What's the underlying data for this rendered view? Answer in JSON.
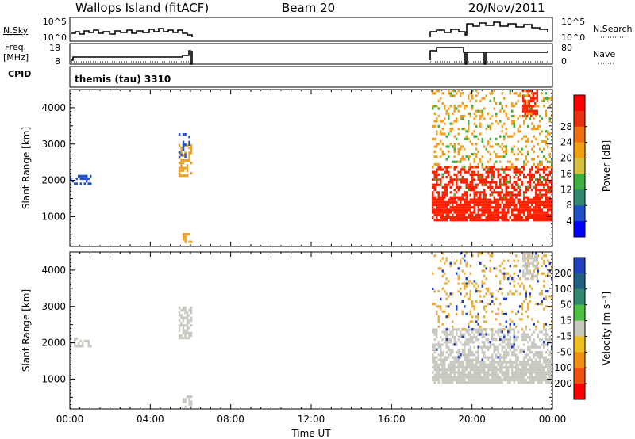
{
  "header": {
    "station": "Wallops Island (fitACF)",
    "beam": "Beam 20",
    "date": "20/Nov/2011"
  },
  "param_panels": {
    "nsky_label": "N.Sky",
    "nsky_ticks": [
      "10^5",
      "10^0"
    ],
    "nsearch_label": "N.Search",
    "nsearch_ticks": [
      "10^5",
      "10^0"
    ],
    "freq_label_1": "Freq.",
    "freq_label_2": "[MHz]",
    "freq_ticks": [
      "18",
      "8"
    ],
    "nave_label": "Nave",
    "nave_ticks": [
      "80",
      "0"
    ],
    "cpid_label": "CPID",
    "cpid_text": "themis (tau) 3310"
  },
  "chart_data": [
    {
      "type": "heatmap",
      "name": "power",
      "ylabel": "Slant Range [km]",
      "xlabel": "Time UT",
      "ylim": [
        180,
        4500
      ],
      "xlim": [
        0,
        24
      ],
      "yticks": [
        "1000",
        "2000",
        "3000",
        "4000"
      ],
      "xticks": [
        "00:00",
        "04:00",
        "08:00",
        "12:00",
        "16:00",
        "20:00",
        "00:00"
      ],
      "colorbar": {
        "label": "Power [dB]",
        "ticks": [
          "4",
          "8",
          "12",
          "16",
          "20",
          "24",
          "28"
        ],
        "colors": [
          "#0000ff",
          "#2050c8",
          "#2f8a70",
          "#3cb040",
          "#d8c040",
          "#f0a010",
          "#f07010",
          "#e83010",
          "#ff0000"
        ]
      },
      "regions": [
        {
          "t": [
            0.0,
            1.0
          ],
          "r": [
            1900,
            2150
          ],
          "color": "#2050c8",
          "density": 0.5
        },
        {
          "t": [
            5.4,
            6.0
          ],
          "r": [
            2100,
            3000
          ],
          "color": "#e8a020",
          "density": 0.55
        },
        {
          "t": [
            5.4,
            6.0
          ],
          "r": [
            2600,
            3300
          ],
          "color": "#2050c8",
          "density": 0.25
        },
        {
          "t": [
            5.6,
            6.0
          ],
          "r": [
            250,
            550
          ],
          "color": "#e8a020",
          "density": 0.5
        },
        {
          "t": [
            18.0,
            24.0
          ],
          "r": [
            900,
            1500
          ],
          "color": "#ff2000",
          "density": 0.85
        },
        {
          "t": [
            18.0,
            24.0
          ],
          "r": [
            1500,
            2400
          ],
          "color": "#ff2000",
          "density": 0.55
        },
        {
          "t": [
            18.0,
            24.0
          ],
          "r": [
            2400,
            4500
          ],
          "color": "#f0a020",
          "density": 0.2
        },
        {
          "t": [
            22.5,
            23.2
          ],
          "r": [
            3800,
            4500
          ],
          "color": "#ff2000",
          "density": 0.6
        },
        {
          "t": [
            18.0,
            24.0
          ],
          "r": [
            1500,
            4500
          ],
          "color": "#3cb040",
          "density": 0.04
        }
      ]
    },
    {
      "type": "heatmap",
      "name": "velocity",
      "ylabel": "Slant Range [km]",
      "xlabel": "Time UT",
      "ylim": [
        180,
        4500
      ],
      "xlim": [
        0,
        24
      ],
      "yticks": [
        "1000",
        "2000",
        "3000",
        "4000"
      ],
      "xticks": [
        "00:00",
        "04:00",
        "08:00",
        "12:00",
        "16:00",
        "20:00",
        "00:00"
      ],
      "colorbar": {
        "label": "Velocity [m s⁻¹]",
        "ticks": [
          "200",
          "100",
          "50",
          "15",
          "-15",
          "-50",
          "-100",
          "-200"
        ],
        "colors": [
          "#2040c0",
          "#206080",
          "#2f8a70",
          "#4cc040",
          "#c8c8c0",
          "#f0c020",
          "#f09010",
          "#f05010",
          "#ff0000"
        ]
      },
      "regions": [
        {
          "t": [
            0.0,
            1.0
          ],
          "r": [
            1900,
            2150
          ],
          "color": "#c8c8c0",
          "density": 0.5
        },
        {
          "t": [
            5.4,
            6.0
          ],
          "r": [
            2100,
            3000
          ],
          "color": "#c8c8c0",
          "density": 0.55
        },
        {
          "t": [
            5.6,
            6.0
          ],
          "r": [
            250,
            550
          ],
          "color": "#c8c8c0",
          "density": 0.5
        },
        {
          "t": [
            18.0,
            24.0
          ],
          "r": [
            900,
            1500
          ],
          "color": "#c8c8c0",
          "density": 0.85
        },
        {
          "t": [
            18.0,
            24.0
          ],
          "r": [
            1500,
            2400
          ],
          "color": "#c8c8c0",
          "density": 0.55
        },
        {
          "t": [
            18.0,
            24.0
          ],
          "r": [
            2400,
            4500
          ],
          "color": "#e8b040",
          "density": 0.15
        },
        {
          "t": [
            22.5,
            23.2
          ],
          "r": [
            3800,
            4500
          ],
          "color": "#c8c8c0",
          "density": 0.6
        },
        {
          "t": [
            18.0,
            24.0
          ],
          "r": [
            1500,
            4500
          ],
          "color": "#2040c0",
          "density": 0.03
        }
      ]
    }
  ]
}
